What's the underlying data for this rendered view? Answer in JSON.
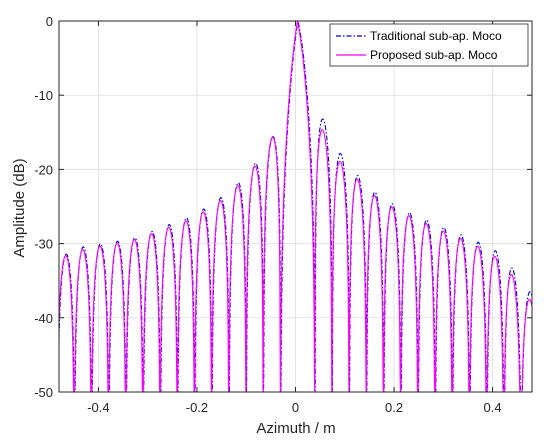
{
  "chart_data": {
    "type": "line",
    "title": "",
    "xlabel": "Azimuth / m",
    "ylabel": "Amplitude (dB)",
    "xlim": [
      -0.48,
      0.48
    ],
    "ylim": [
      -50,
      0
    ],
    "xticks": [
      -0.4,
      -0.2,
      0,
      0.2,
      0.4
    ],
    "xtick_labels": [
      "-0.4",
      "-0.2",
      "0",
      "0.2",
      "0.4"
    ],
    "yticks": [
      0,
      -10,
      -20,
      -30,
      -40,
      -50
    ],
    "ytick_labels": [
      "0",
      "-10",
      "-20",
      "-30",
      "-40",
      "-50"
    ],
    "grid": true,
    "legend_position": "top-right",
    "series": [
      {
        "name": "Traditional sub-ap. Moco",
        "color": "#0000cc",
        "style": "dash-dot",
        "mainlobe_center": 0.005,
        "null_spacing": 0.0225,
        "sidelobe_peaks_left": [
          [
            -0.029,
            -13.5
          ],
          [
            -0.065,
            -17.8
          ],
          [
            -0.1,
            -20.7
          ],
          [
            -0.135,
            -23.0
          ],
          [
            -0.168,
            -24.6
          ],
          [
            -0.203,
            -26.0
          ],
          [
            -0.238,
            -27.0
          ],
          [
            -0.272,
            -27.8
          ],
          [
            -0.306,
            -28.8
          ],
          [
            -0.34,
            -29.5
          ],
          [
            -0.375,
            -29.8
          ],
          [
            -0.41,
            -30.2
          ],
          [
            -0.445,
            -30.6
          ],
          [
            -0.48,
            -32.0
          ]
        ],
        "sidelobe_peaks_right": [
          [
            0.045,
            -11.5
          ],
          [
            0.08,
            -16.8
          ],
          [
            0.115,
            -20.0
          ],
          [
            0.15,
            -22.5
          ],
          [
            0.185,
            -24.2
          ],
          [
            0.22,
            -25.5
          ],
          [
            0.255,
            -26.5
          ],
          [
            0.29,
            -27.5
          ],
          [
            0.325,
            -28.5
          ],
          [
            0.36,
            -29.5
          ],
          [
            0.395,
            -30.5
          ],
          [
            0.43,
            -32.0
          ],
          [
            0.465,
            -36.5
          ]
        ]
      },
      {
        "name": "Proposed sub-ap. Moco",
        "color": "#ff00ff",
        "style": "solid",
        "mainlobe_center": 0.004,
        "null_spacing": 0.0225,
        "sidelobe_peaks_left": [
          [
            -0.03,
            -13.3
          ],
          [
            -0.066,
            -18.2
          ],
          [
            -0.1,
            -21.0
          ],
          [
            -0.135,
            -23.4
          ],
          [
            -0.168,
            -24.9
          ],
          [
            -0.203,
            -26.4
          ],
          [
            -0.238,
            -27.4
          ],
          [
            -0.272,
            -28.1
          ],
          [
            -0.306,
            -29.0
          ],
          [
            -0.34,
            -29.7
          ],
          [
            -0.375,
            -30.1
          ],
          [
            -0.41,
            -30.5
          ],
          [
            -0.445,
            -31.0
          ],
          [
            -0.48,
            -32.0
          ]
        ],
        "sidelobe_peaks_right": [
          [
            0.045,
            -13.2
          ],
          [
            0.08,
            -18.2
          ],
          [
            0.115,
            -20.6
          ],
          [
            0.15,
            -23.0
          ],
          [
            0.185,
            -24.7
          ],
          [
            0.22,
            -25.9
          ],
          [
            0.255,
            -27.0
          ],
          [
            0.29,
            -28.0
          ],
          [
            0.325,
            -29.0
          ],
          [
            0.36,
            -30.0
          ],
          [
            0.395,
            -31.2
          ],
          [
            0.43,
            -33.0
          ],
          [
            0.465,
            -37.5
          ]
        ]
      }
    ]
  }
}
